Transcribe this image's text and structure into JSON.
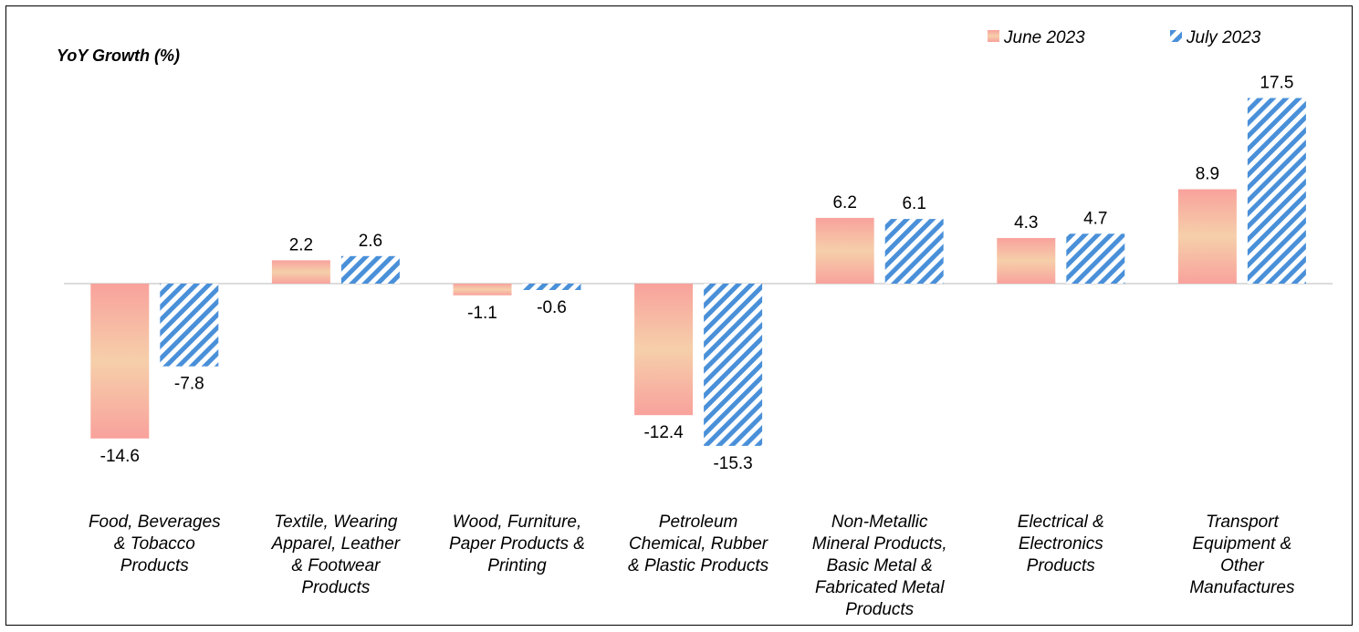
{
  "chart_data": {
    "type": "bar",
    "ylabel": "YoY Growth (%)",
    "categories": [
      [
        "Food, Beverages",
        "& Tobacco",
        "Products"
      ],
      [
        "Textile, Wearing",
        "Apparel, Leather",
        "& Footwear",
        "Products"
      ],
      [
        "Wood, Furniture,",
        "Paper Products &",
        "Printing"
      ],
      [
        "Petroleum",
        "Chemical, Rubber",
        "& Plastic Products"
      ],
      [
        "Non-Metallic",
        "Mineral Products,",
        "Basic Metal &",
        "Fabricated Metal",
        "Products"
      ],
      [
        "Electrical &",
        "Electronics",
        "Products"
      ],
      [
        "Transport",
        "Equipment &",
        "Other",
        "Manufactures"
      ]
    ],
    "series": [
      {
        "name": "June 2023",
        "values": [
          -14.6,
          2.2,
          -1.1,
          -12.4,
          6.2,
          4.3,
          8.9
        ]
      },
      {
        "name": "July 2023",
        "values": [
          -7.8,
          2.6,
          -0.6,
          -15.3,
          6.1,
          4.7,
          17.5
        ]
      }
    ],
    "value_labels": [
      [
        "-14.6",
        "2.2",
        "-1.1",
        "-12.4",
        "6.2",
        "4.3",
        "8.9"
      ],
      [
        "-7.8",
        "2.6",
        "-0.6",
        "-15.3",
        "6.1",
        "4.7",
        "17.5"
      ]
    ],
    "legend_position": "top-right",
    "colors": {
      "june": "#f8a7a0",
      "june_mid": "#f6cba8",
      "july": "#4a90d9"
    }
  }
}
